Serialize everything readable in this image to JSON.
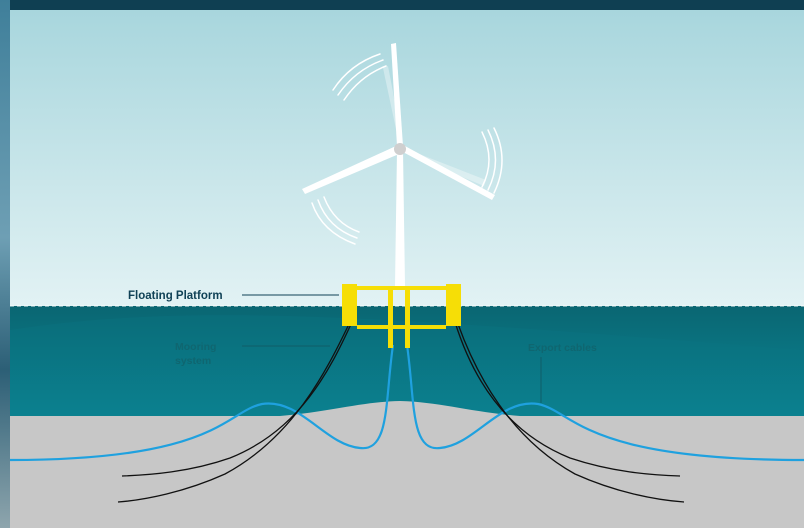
{
  "labels": {
    "floating_platform": "Floating Platform",
    "mooring_line1": "Mooring",
    "mooring_line2": "system",
    "export_cables": "Export cables"
  },
  "colors": {
    "sky_top": "#a8d6dd",
    "sky_bottom": "#e2f2f4",
    "sea_top": "#0a6672",
    "sea_bottom": "#0b8796",
    "seabed": "#c7c7c7",
    "platform": "#f6de06",
    "cable": "#1fa1df",
    "mooring": "#111111",
    "label_dark": "#0f4156",
    "label_muted": "#0f6670",
    "frame_dark": "#0f3f52",
    "turbine": "#ffffff"
  },
  "icons": {
    "turbine": "wind-turbine-icon",
    "rotation_arcs": "rotation-arrows-icon"
  }
}
